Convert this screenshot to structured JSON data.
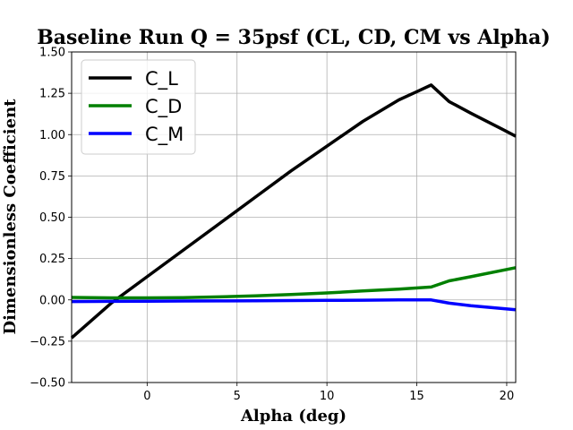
{
  "chart_data": {
    "type": "line",
    "title": "Baseline Run Q = 35psf (CL, CD, CM vs Alpha)",
    "xlabel": "Alpha (deg)",
    "ylabel": "Dimensionless Coefficient",
    "xlim": [
      -4.2,
      20.5
    ],
    "ylim": [
      -0.5,
      1.5
    ],
    "xticks": [
      0,
      5,
      10,
      15,
      20
    ],
    "yticks": [
      -0.5,
      -0.25,
      0.0,
      0.25,
      0.5,
      0.75,
      1.0,
      1.25,
      1.5
    ],
    "grid": true,
    "legend_position": "top-left",
    "series": [
      {
        "name": "C_L",
        "color": "#000000",
        "x": [
          -4.2,
          -2,
          0,
          2,
          4,
          6,
          8,
          10,
          12,
          14,
          15,
          15.8,
          16.8,
          18,
          19.8,
          20.5
        ],
        "y": [
          -0.23,
          -0.02,
          0.14,
          0.3,
          0.46,
          0.62,
          0.78,
          0.93,
          1.08,
          1.21,
          1.26,
          1.3,
          1.2,
          1.13,
          1.03,
          0.99
        ]
      },
      {
        "name": "C_D",
        "color": "#008000",
        "x": [
          -4.2,
          -2,
          0,
          2,
          4,
          6,
          8,
          10,
          12,
          14,
          15.8,
          16.8,
          18,
          20.5
        ],
        "y": [
          0.015,
          0.012,
          0.012,
          0.014,
          0.018,
          0.024,
          0.032,
          0.042,
          0.054,
          0.065,
          0.078,
          0.115,
          0.14,
          0.195
        ]
      },
      {
        "name": "C_M",
        "color": "#0000ff",
        "x": [
          -4.2,
          -2,
          0,
          2,
          4,
          6,
          8,
          10,
          12,
          14,
          15.8,
          16.8,
          18,
          20.5
        ],
        "y": [
          -0.01,
          -0.009,
          -0.008,
          -0.007,
          -0.006,
          -0.005,
          -0.004,
          -0.003,
          -0.002,
          0.0,
          0.0,
          -0.02,
          -0.035,
          -0.06
        ]
      }
    ]
  }
}
